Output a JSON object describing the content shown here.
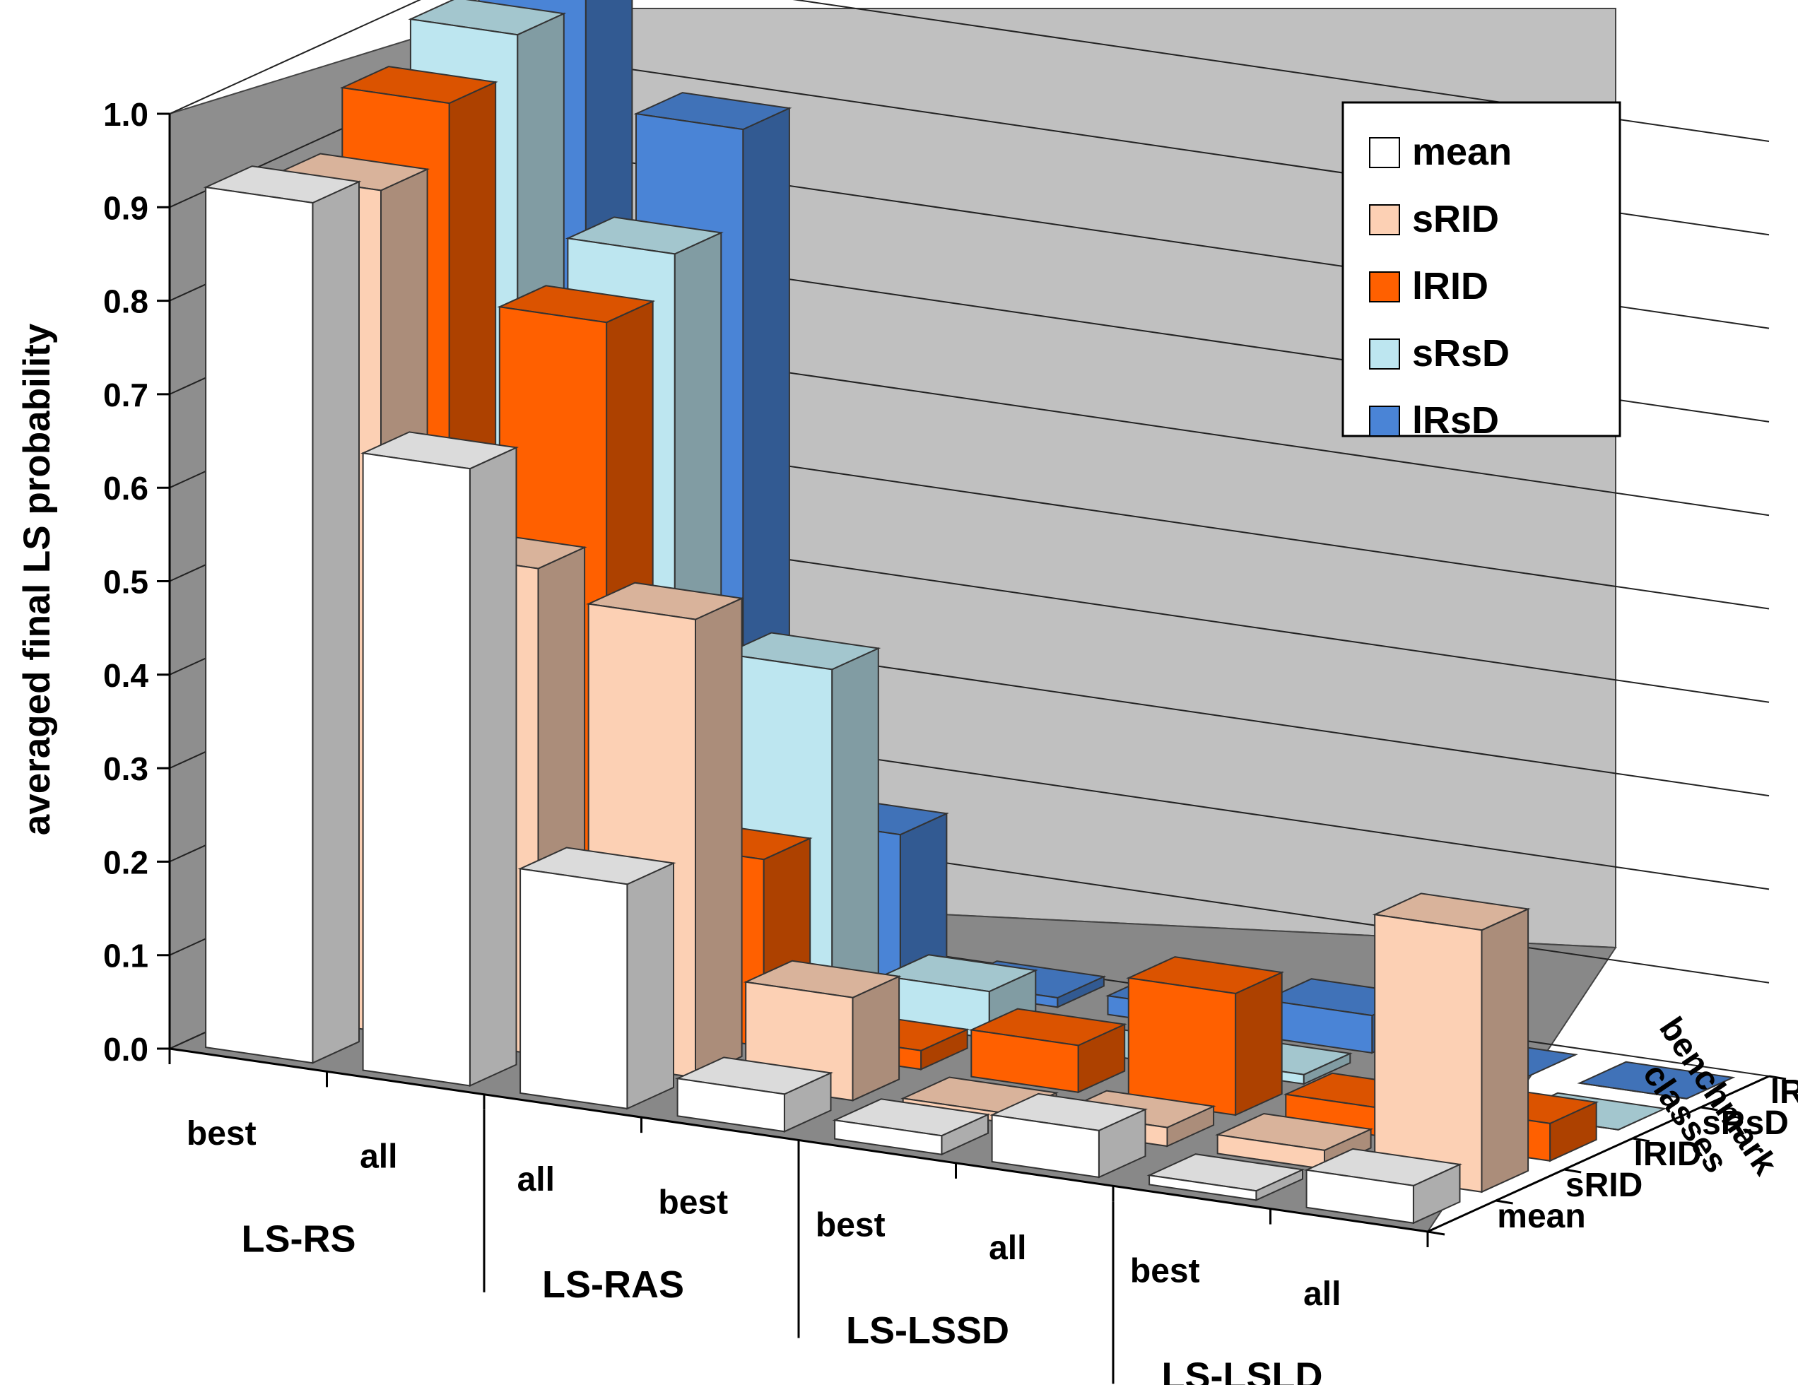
{
  "chart_data": {
    "type": "bar3d",
    "title": "",
    "ylabel": "averaged final LS probability",
    "zlabel": [
      "benchmark",
      "classes"
    ],
    "ylim": [
      0,
      1.0
    ],
    "yticks": [
      "0.0",
      "0.1",
      "0.2",
      "0.3",
      "0.4",
      "0.5",
      "0.6",
      "0.7",
      "0.8",
      "0.9",
      "1.0"
    ],
    "groups": [
      "LS-RS",
      "LS-RAS",
      "LS-LSSD",
      "LS-LSLD"
    ],
    "categories": [
      {
        "group": "LS-RS",
        "label": "best"
      },
      {
        "group": "LS-RS",
        "label": "all"
      },
      {
        "group": "LS-RAS",
        "label": "all"
      },
      {
        "group": "LS-RAS",
        "label": "best"
      },
      {
        "group": "LS-LSSD",
        "label": "best"
      },
      {
        "group": "LS-LSSD",
        "label": "all"
      },
      {
        "group": "LS-LSLD",
        "label": "best"
      },
      {
        "group": "LS-LSLD",
        "label": "all"
      }
    ],
    "depth_labels": [
      "mean",
      "sRID",
      "lRID",
      "sRsD",
      "lRsD"
    ],
    "series": [
      {
        "name": "mean",
        "color": "#ffffff",
        "values": [
          0.92,
          0.66,
          0.24,
          0.04,
          0.02,
          0.05,
          0.01,
          0.04
        ]
      },
      {
        "name": "sRID",
        "color": "#fcd0b4",
        "values": [
          0.9,
          0.52,
          0.49,
          0.11,
          0.01,
          0.02,
          0.02,
          0.28
        ]
      },
      {
        "name": "lRID",
        "color": "#ff6000",
        "values": [
          0.96,
          0.75,
          0.2,
          0.02,
          0.05,
          0.13,
          0.03,
          0.04
        ]
      },
      {
        "name": "sRsD",
        "color": "#bde6f0",
        "values": [
          1.0,
          0.79,
          0.37,
          0.05,
          0.0,
          0.01,
          0.0,
          0.0
        ]
      },
      {
        "name": "lRsD",
        "color": "#4a84d6",
        "values": [
          1.05,
          0.89,
          0.16,
          0.01,
          0.02,
          0.04,
          0.0,
          0.0
        ]
      }
    ],
    "legend": [
      "mean",
      "sRID",
      "lRID",
      "sRsD",
      "lRsD"
    ],
    "legend_position": "top-right",
    "grid": true
  }
}
